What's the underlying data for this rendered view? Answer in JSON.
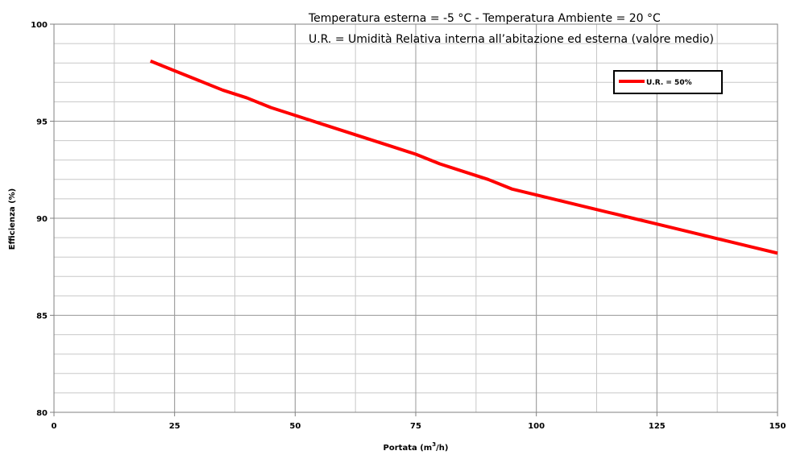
{
  "chart_data": {
    "type": "line",
    "title": "",
    "annotations": [
      "Temperatura esterna = -5 °C - Temperatura Ambiente = 20 °C",
      "U.R. = Umidità Relativa interna all’abitazione ed esterna (valore medio)"
    ],
    "xlabel_main": "Portata (m",
    "xlabel_sup": "3",
    "xlabel_end": "/h)",
    "ylabel": "Efficienza (%)",
    "xlim": [
      0,
      150
    ],
    "ylim": [
      80,
      100
    ],
    "x_ticks": [
      0,
      25,
      50,
      75,
      100,
      125,
      150
    ],
    "y_ticks": [
      80,
      85,
      90,
      95,
      100
    ],
    "x_minor_step": 12.5,
    "y_minor_step": 1,
    "grid": true,
    "legend_position": "top-right",
    "series": [
      {
        "name": "U.R. = 50%",
        "color": "#ff0000",
        "x": [
          20,
          25,
          30,
          35,
          40,
          45,
          50,
          55,
          60,
          65,
          70,
          75,
          80,
          85,
          90,
          95,
          100,
          105,
          110,
          115,
          120,
          125,
          130,
          135,
          140,
          145,
          150
        ],
        "y": [
          98.1,
          97.6,
          97.1,
          96.6,
          96.2,
          95.7,
          95.3,
          94.9,
          94.5,
          94.1,
          93.7,
          93.3,
          92.8,
          92.4,
          92.0,
          91.5,
          91.2,
          90.9,
          90.6,
          90.3,
          90.0,
          89.7,
          89.4,
          89.1,
          88.8,
          88.5,
          88.2
        ]
      }
    ]
  }
}
